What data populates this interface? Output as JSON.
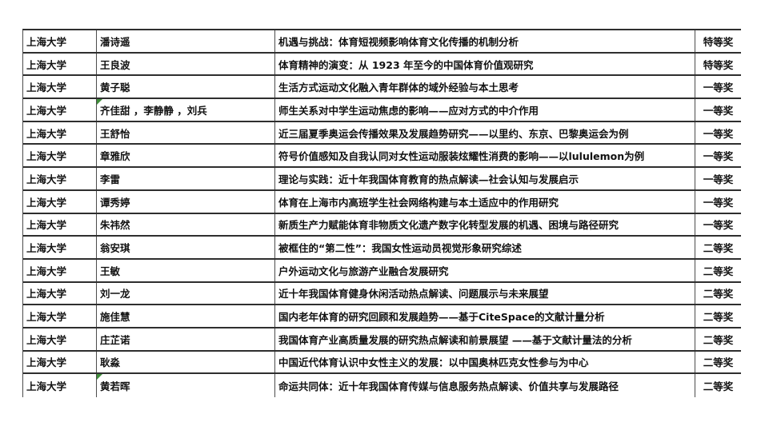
{
  "colors": {
    "background": "#ffffff",
    "text": "#111111",
    "border_dark": "#2e2e2e",
    "border_light": "#4c4c4c",
    "comment_marker_green": "#3f8d3a"
  },
  "table": {
    "rows": [
      {
        "university": "上海大学",
        "authors": "潘诗遥",
        "title": "机遇与挑战：体育短视频影响体育文化传播的机制分析",
        "award": "特等奖",
        "comment_marker": false
      },
      {
        "university": "上海大学",
        "authors": "王良波",
        "title": "体育精神的演变：从 1923 年至今的中国体育价值观研究",
        "award": "特等奖",
        "comment_marker": false
      },
      {
        "university": "上海大学",
        "authors": "黄子聪",
        "title": "生活方式运动文化融入青年群体的域外经验与本土思考",
        "award": "一等奖",
        "comment_marker": false
      },
      {
        "university": "上海大学",
        "authors": "齐佳甜 ，李静静 ，刘兵",
        "title": "师生关系对中学生运动焦虑的影响——应对方式的中介作用",
        "award": "一等奖",
        "comment_marker": true
      },
      {
        "university": "上海大学",
        "authors": "王舒怡",
        "title": "近三届夏季奥运会传播效果及发展趋势研究——以里约、东京、巴黎奥运会为例",
        "award": "一等奖",
        "comment_marker": false
      },
      {
        "university": "上海大学",
        "authors": "章雅欣",
        "title": "符号价值感知及自我认同对女性运动服装炫耀性消费的影响——以lululemon为例",
        "award": "一等奖",
        "comment_marker": false
      },
      {
        "university": "上海大学",
        "authors": "李雷",
        "title": "理论与实践：近十年我国体育教育的热点解读—社会认知与发展启示",
        "award": "一等奖",
        "comment_marker": false
      },
      {
        "university": "上海大学",
        "authors": "谭秀婷",
        "title": "体育在上海市内高班学生社会网络构建与本土适应中的作用研究",
        "award": "一等奖",
        "comment_marker": false
      },
      {
        "university": "上海大学",
        "authors": "朱祎然",
        "title": "新质生产力赋能体育非物质文化遗产数字化转型发展的机遇、困境与路径研究",
        "award": "一等奖",
        "comment_marker": false
      },
      {
        "university": "上海大学",
        "authors": "翁安琪",
        "title": "被框住的“第二性”：我国女性运动员视觉形象研究综述",
        "award": "二等奖",
        "comment_marker": false
      },
      {
        "university": "上海大学",
        "authors": "王敏",
        "title": "户外运动文化与旅游产业融合发展研究",
        "award": "二等奖",
        "comment_marker": false
      },
      {
        "university": "上海大学",
        "authors": "刘一龙",
        "title": "近十年我国体育健身休闲活动热点解读、问题展示与未来展望",
        "award": "二等奖",
        "comment_marker": false
      },
      {
        "university": "上海大学",
        "authors": "施佳慧",
        "title": "国内老年体育的研究回顾和发展趋势——基于CiteSpace的文献计量分析",
        "award": "二等奖",
        "comment_marker": false
      },
      {
        "university": "上海大学",
        "authors": "庄芷诺",
        "title": "我国体育产业高质量发展的研究热点解读和前景展望 ——基于文献计量法的分析",
        "award": "二等奖",
        "comment_marker": false
      },
      {
        "university": "上海大学",
        "authors": "耿淼",
        "title": "中国近代体育认识中女性主义的发展：以中国奥林匹克女性参与为中心",
        "award": "二等奖",
        "comment_marker": false
      },
      {
        "university": "上海大学",
        "authors": "黄若晖",
        "title": "命运共同体：近十年我国体育传媒与信息服务热点解读、价值共享与发展路径",
        "award": "二等奖",
        "comment_marker": true
      }
    ]
  }
}
